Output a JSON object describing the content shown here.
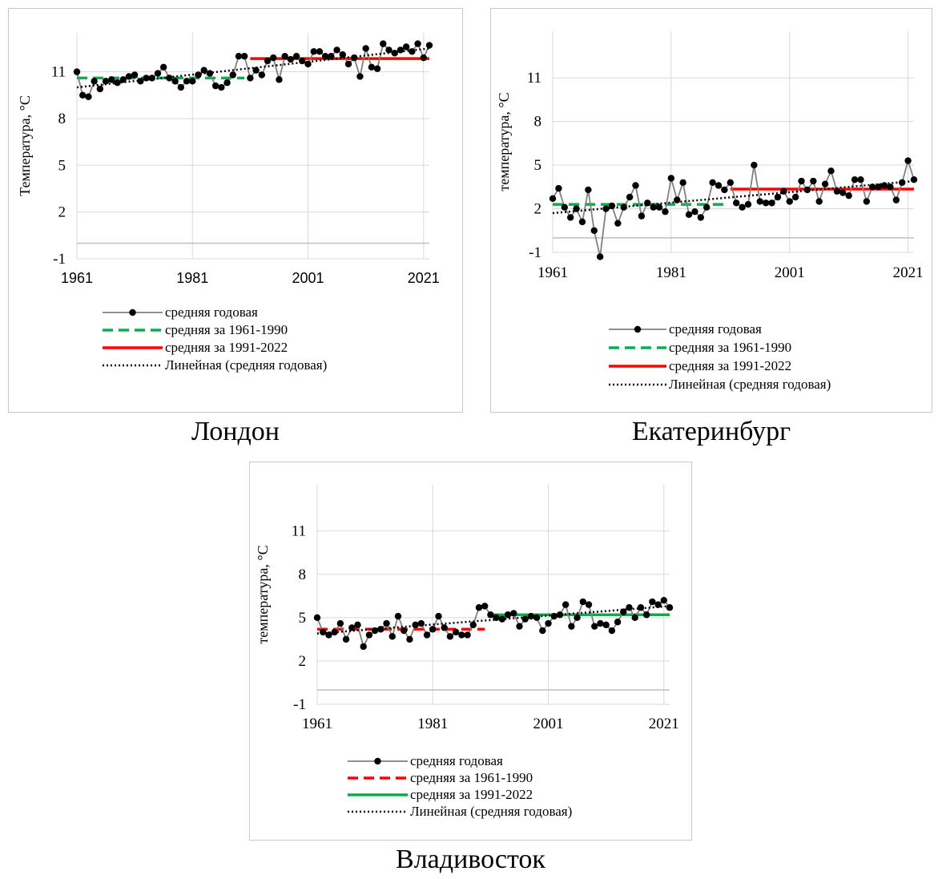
{
  "captions": [
    "Лондон",
    "Екатеринбург",
    "Владивосток"
  ],
  "colors": {
    "series": "#808080",
    "marker": "#000000",
    "green": "#00b050",
    "red": "#ff0000",
    "trend": "#000000",
    "grid": "#d9d9d9"
  },
  "chart_data": [
    {
      "type": "line",
      "ylabel": "Температура, °С",
      "yticks": [
        -1,
        2,
        5,
        8,
        11
      ],
      "xticks": [
        1961,
        1981,
        2001,
        2021
      ],
      "xlim": [
        1961,
        2022
      ],
      "ylim": [
        -1,
        13.5
      ],
      "grid": true,
      "legend_position": "bottom",
      "legend": [
        "средняя годовая",
        "средняя за 1961-1990",
        "средняя за 1991-2022",
        "Линейная (средняя годовая)"
      ],
      "series": [
        {
          "name": "средняя годовая",
          "x": [
            1961,
            1962,
            1963,
            1964,
            1965,
            1966,
            1967,
            1968,
            1969,
            1970,
            1971,
            1972,
            1973,
            1974,
            1975,
            1976,
            1977,
            1978,
            1979,
            1980,
            1981,
            1982,
            1983,
            1984,
            1985,
            1986,
            1987,
            1988,
            1989,
            1990,
            1991,
            1992,
            1993,
            1994,
            1995,
            1996,
            1997,
            1998,
            1999,
            2000,
            2001,
            2002,
            2003,
            2004,
            2005,
            2006,
            2007,
            2008,
            2009,
            2010,
            2011,
            2012,
            2013,
            2014,
            2015,
            2016,
            2017,
            2018,
            2019,
            2020,
            2021,
            2022
          ],
          "values": [
            11.0,
            9.5,
            9.4,
            10.4,
            9.9,
            10.4,
            10.5,
            10.3,
            10.5,
            10.7,
            10.8,
            10.4,
            10.6,
            10.6,
            10.9,
            11.3,
            10.6,
            10.4,
            10.0,
            10.4,
            10.4,
            10.8,
            11.1,
            10.9,
            10.1,
            10.0,
            10.3,
            10.8,
            12.0,
            12.0,
            10.6,
            11.1,
            10.8,
            11.7,
            11.9,
            10.5,
            12.0,
            11.8,
            12.0,
            11.7,
            11.5,
            12.3,
            12.3,
            12.0,
            12.0,
            12.4,
            12.1,
            11.5,
            11.9,
            10.7,
            12.5,
            11.3,
            11.2,
            12.8,
            12.4,
            12.2,
            12.4,
            12.6,
            12.3,
            12.8,
            11.9,
            12.7
          ]
        },
        {
          "name": "средняя за 1961-1990",
          "from": 1961,
          "to": 1990,
          "value": 10.6,
          "color_key": "green",
          "dash": "dash"
        },
        {
          "name": "средняя за 1991-2022",
          "from": 1991,
          "to": 2022,
          "value": 11.85,
          "color_key": "red",
          "dash": "solid"
        },
        {
          "name": "Линейная (средняя годовая)",
          "from": 1961,
          "to": 2022,
          "start": 10.0,
          "end": 12.5,
          "color_key": "trend",
          "dash": "dot"
        }
      ]
    },
    {
      "type": "line",
      "ylabel": "температура, °С",
      "yticks": [
        -1,
        2,
        5,
        8,
        11
      ],
      "xticks": [
        1961,
        1981,
        2001,
        2021
      ],
      "xlim": [
        1961,
        2022
      ],
      "ylim": [
        -1,
        14.2
      ],
      "grid": true,
      "legend_position": "bottom",
      "legend": [
        "средняя годовая",
        "средняя за 1961-1990",
        "средняя за 1991-2022",
        "Линейная (средняя годовая)"
      ],
      "series": [
        {
          "name": "средняя годовая",
          "x": [
            1961,
            1962,
            1963,
            1964,
            1965,
            1966,
            1967,
            1968,
            1969,
            1970,
            1971,
            1972,
            1973,
            1974,
            1975,
            1976,
            1977,
            1978,
            1979,
            1980,
            1981,
            1982,
            1983,
            1984,
            1985,
            1986,
            1987,
            1988,
            1989,
            1990,
            1991,
            1992,
            1993,
            1994,
            1995,
            1996,
            1997,
            1998,
            1999,
            2000,
            2001,
            2002,
            2003,
            2004,
            2005,
            2006,
            2007,
            2008,
            2009,
            2010,
            2011,
            2012,
            2013,
            2014,
            2015,
            2016,
            2017,
            2018,
            2019,
            2020,
            2021,
            2022
          ],
          "values": [
            2.7,
            3.4,
            2.1,
            1.4,
            2.0,
            1.1,
            3.3,
            0.5,
            -1.3,
            2.0,
            2.2,
            1.0,
            2.1,
            2.8,
            3.6,
            1.5,
            2.4,
            2.1,
            2.1,
            1.8,
            4.1,
            2.6,
            3.8,
            1.6,
            1.8,
            1.4,
            2.1,
            3.8,
            3.6,
            3.3,
            3.8,
            2.4,
            2.1,
            2.3,
            5.0,
            2.5,
            2.4,
            2.4,
            2.8,
            3.2,
            2.5,
            2.8,
            3.9,
            3.3,
            3.9,
            2.5,
            3.7,
            4.6,
            3.2,
            3.1,
            2.9,
            4.0,
            4.0,
            2.5,
            3.5,
            3.5,
            3.6,
            3.5,
            2.6,
            3.8,
            5.3,
            4.0
          ]
        },
        {
          "name": "средняя за 1961-1990",
          "from": 1961,
          "to": 1990,
          "value": 2.3,
          "color_key": "green",
          "dash": "dash"
        },
        {
          "name": "средняя за 1991-2022",
          "from": 1991,
          "to": 2022,
          "value": 3.35,
          "color_key": "red",
          "dash": "solid"
        },
        {
          "name": "Линейная (средняя годовая)",
          "from": 1961,
          "to": 2022,
          "start": 1.7,
          "end": 3.9,
          "color_key": "trend",
          "dash": "dot"
        }
      ]
    },
    {
      "type": "line",
      "ylabel": "температура, °С",
      "yticks": [
        -1,
        2,
        5,
        8,
        11
      ],
      "xticks": [
        1961,
        1981,
        2001,
        2021
      ],
      "xlim": [
        1961,
        2022
      ],
      "ylim": [
        -1,
        14.2
      ],
      "grid": true,
      "legend_position": "bottom",
      "legend": [
        "средняя годовая",
        "средняя за 1961-1990",
        "средняя за 1991-2022",
        "Линейная (средняя годовая)"
      ],
      "series": [
        {
          "name": "средняя годовая",
          "x": [
            1961,
            1962,
            1963,
            1964,
            1965,
            1966,
            1967,
            1968,
            1969,
            1970,
            1971,
            1972,
            1973,
            1974,
            1975,
            1976,
            1977,
            1978,
            1979,
            1980,
            1981,
            1982,
            1983,
            1984,
            1985,
            1986,
            1987,
            1988,
            1989,
            1990,
            1991,
            1992,
            1993,
            1994,
            1995,
            1996,
            1997,
            1998,
            1999,
            2000,
            2001,
            2002,
            2003,
            2004,
            2005,
            2006,
            2007,
            2008,
            2009,
            2010,
            2011,
            2012,
            2013,
            2014,
            2015,
            2016,
            2017,
            2018,
            2019,
            2020,
            2021,
            2022
          ],
          "values": [
            5.0,
            4.0,
            3.8,
            4.0,
            4.6,
            3.5,
            4.3,
            4.5,
            3.0,
            3.8,
            4.1,
            4.2,
            4.6,
            3.7,
            5.1,
            4.1,
            3.5,
            4.5,
            4.6,
            3.8,
            4.2,
            5.1,
            4.3,
            3.7,
            4.0,
            3.8,
            3.8,
            4.5,
            5.7,
            5.8,
            5.2,
            5.0,
            4.9,
            5.2,
            5.3,
            4.4,
            4.9,
            5.1,
            5.0,
            4.1,
            4.6,
            5.1,
            5.2,
            5.9,
            4.4,
            5.0,
            6.1,
            5.9,
            4.4,
            4.6,
            4.5,
            4.1,
            4.7,
            5.4,
            5.7,
            5.0,
            5.7,
            5.2,
            6.1,
            5.9,
            6.2,
            5.7
          ]
        },
        {
          "name": "средняя за 1961-1990",
          "from": 1961,
          "to": 1990,
          "value": 4.2,
          "color_key": "red",
          "dash": "dash"
        },
        {
          "name": "средняя за 1991-2022",
          "from": 1991,
          "to": 2022,
          "value": 5.2,
          "color_key": "green",
          "dash": "solid"
        },
        {
          "name": "Линейная (средняя годовая)",
          "from": 1961,
          "to": 2022,
          "start": 3.9,
          "end": 5.8,
          "color_key": "trend",
          "dash": "dot"
        }
      ]
    }
  ]
}
